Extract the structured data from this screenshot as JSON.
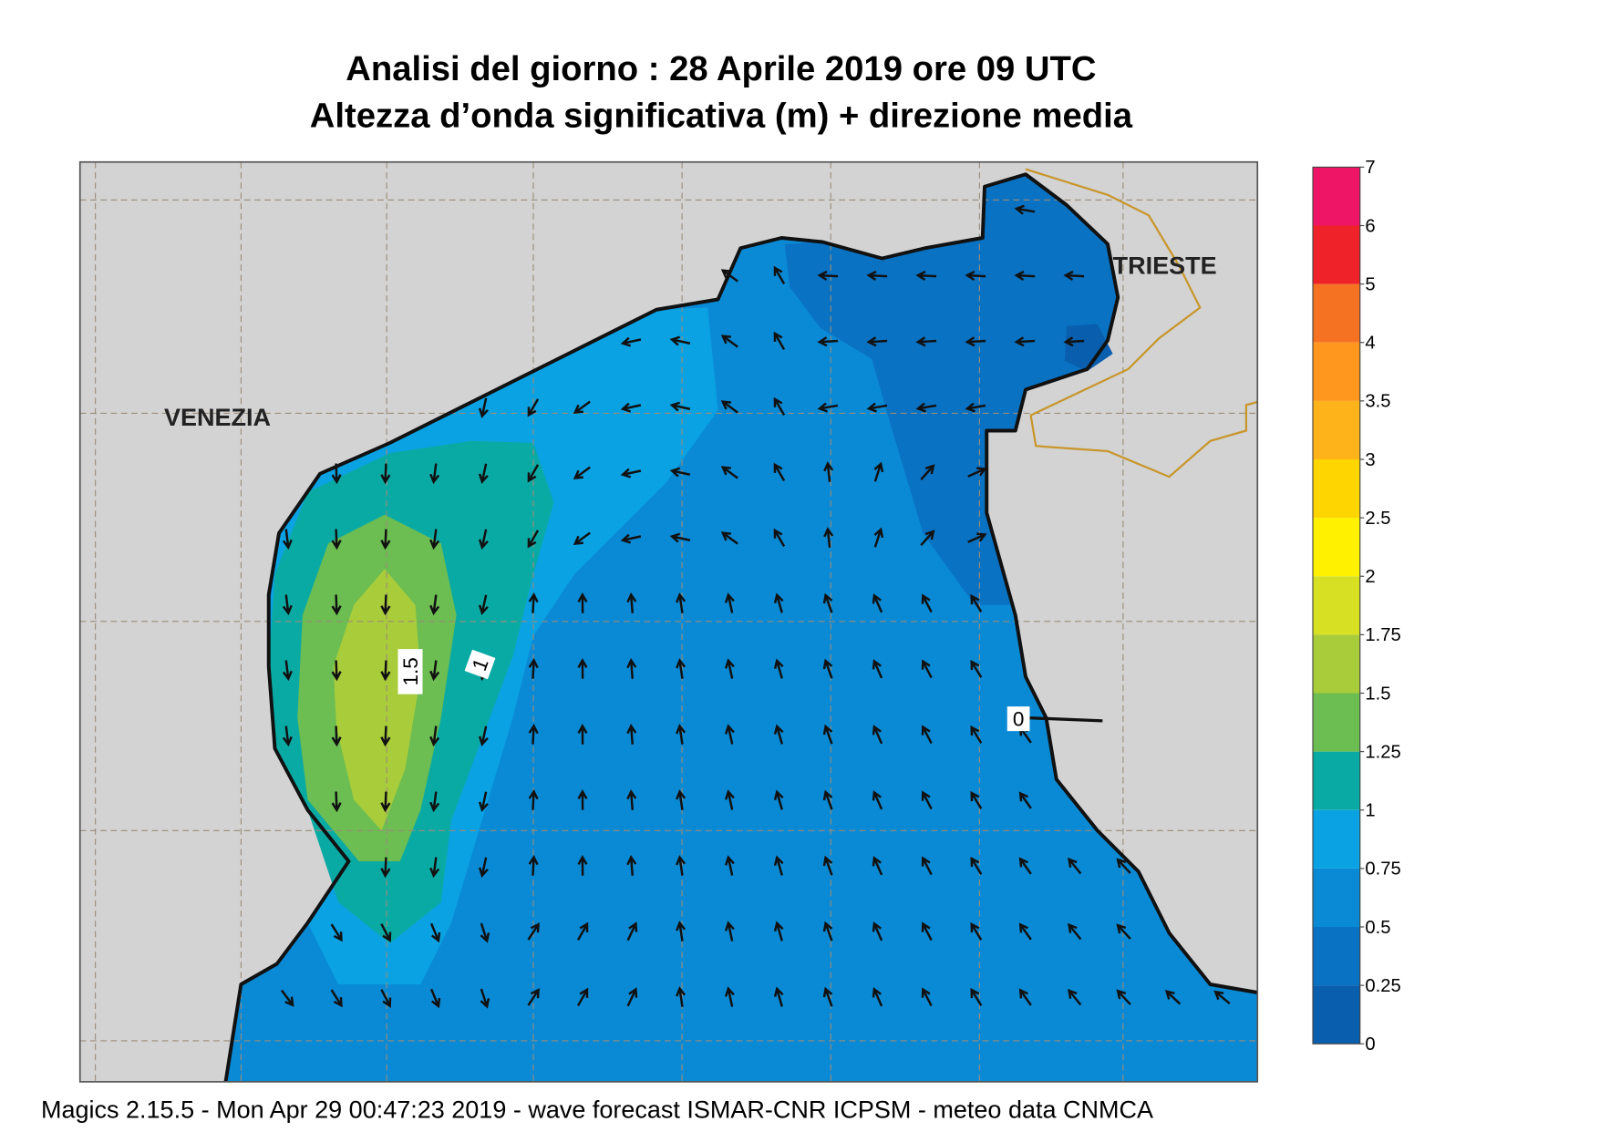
{
  "title": [
    "Analisi del giorno :  28   Aprile  2019   ore 09 UTC",
    "Altezza d’onda significativa (m) + direzione media"
  ],
  "places": {
    "venezia": "VENEZIA",
    "trieste": "TRIESTE"
  },
  "contour_labels": [
    "1.5",
    "1",
    "0"
  ],
  "colorbar": {
    "ticks": [
      0,
      0.25,
      0.5,
      0.75,
      1,
      1.25,
      1.5,
      1.75,
      2,
      2.5,
      3,
      3.5,
      4,
      5,
      6,
      7
    ],
    "colors": [
      "#0a5eae",
      "#0a72c2",
      "#0a8ad5",
      "#0aa2e2",
      "#0aaaa4",
      "#6cbd52",
      "#a9cd3a",
      "#d8e024",
      "#fff100",
      "#ffd500",
      "#ffb31a",
      "#ff961e",
      "#f57222",
      "#ee2228",
      "#ee1466"
    ]
  },
  "footer": "Magics 2.15.5 - Mon Apr 29 00:47:23 2019 - wave forecast  ISMAR-CNR  ICPSM - meteo data   CNMCA"
}
